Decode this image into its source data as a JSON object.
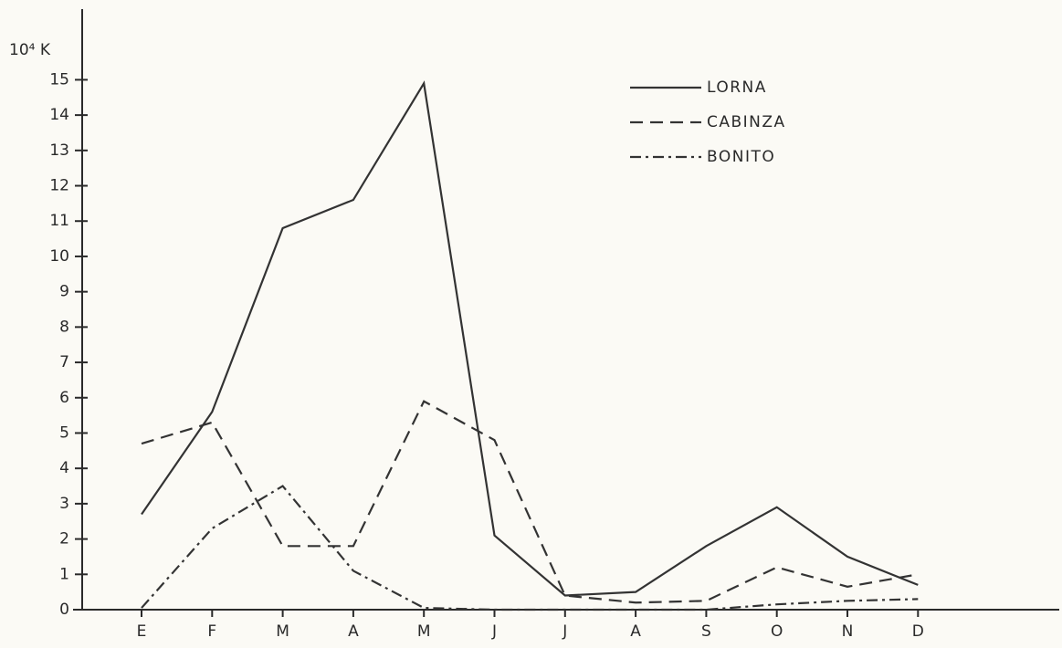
{
  "chart_data": {
    "type": "line",
    "ylabel": "10⁴ K",
    "categories": [
      "E",
      "F",
      "M",
      "A",
      "M",
      "J",
      "J",
      "A",
      "S",
      "O",
      "N",
      "D"
    ],
    "series": [
      {
        "name": "LORNA",
        "color": "#333333",
        "style": "solid",
        "values": [
          2.7,
          5.6,
          10.8,
          11.6,
          14.9,
          2.1,
          0.4,
          0.5,
          1.8,
          2.9,
          1.5,
          0.7
        ]
      },
      {
        "name": "CABINZA",
        "color": "#333333",
        "style": "dashed",
        "values": [
          4.7,
          5.3,
          1.8,
          1.8,
          5.9,
          4.8,
          0.4,
          0.2,
          0.25,
          1.2,
          0.65,
          1.0
        ]
      },
      {
        "name": "BONITO",
        "color": "#333333",
        "style": "dashdot",
        "values": [
          0.05,
          2.3,
          3.5,
          1.1,
          0.05,
          0,
          0,
          0,
          0,
          0.15,
          0.25,
          0.3
        ]
      }
    ],
    "ylim": [
      0,
      17
    ],
    "yticks": [
      0,
      1,
      2,
      3,
      4,
      5,
      6,
      7,
      8,
      9,
      10,
      11,
      12,
      13,
      14,
      15
    ],
    "legend": "top-right"
  }
}
